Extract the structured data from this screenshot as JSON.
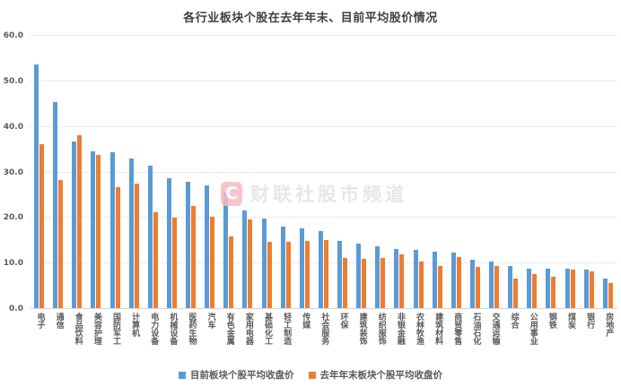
{
  "title": "各行业板块个股在去年年末、目前平均股价情况",
  "watermark": {
    "logo_letter": "C",
    "text": "财联社股市频道"
  },
  "legend": [
    {
      "label": "目前板块个股平均收盘价",
      "color": "#5B9BD5"
    },
    {
      "label": "去年年末板块个股平均收盘价",
      "color": "#ED7D31"
    }
  ],
  "colors": {
    "series_current": "#5B9BD5",
    "series_last_year": "#ED7D31",
    "gridline": "#ebebeb",
    "axis_text": "#595959",
    "title_text": "#3f3f3f",
    "watermark_logo": "#f6bcc3",
    "watermark_text": "#e7e7e9"
  },
  "chart_data": {
    "type": "bar",
    "title": "各行业板块个股在去年年末、目前平均股价情况",
    "categories": [
      "电子",
      "通信",
      "食品饮料",
      "美容护理",
      "国防军工",
      "计算机",
      "电力设备",
      "机械设备",
      "医药生物",
      "汽车",
      "有色金属",
      "家用电器",
      "基础化工",
      "轻工制造",
      "传媒",
      "社会服务",
      "环保",
      "建筑装饰",
      "纺织服饰",
      "非银金融",
      "农林牧渔",
      "建筑材料",
      "商贸零售",
      "石油石化",
      "交通运输",
      "综合",
      "公用事业",
      "钢铁",
      "煤炭",
      "银行",
      "房地产"
    ],
    "series": [
      {
        "name": "目前板块个股平均收盘价",
        "color": "#5B9BD5",
        "values": [
          53.6,
          45.3,
          36.5,
          34.5,
          34.3,
          32.8,
          31.2,
          28.5,
          27.7,
          27.0,
          25.3,
          21.5,
          19.6,
          18.0,
          17.5,
          17.0,
          14.7,
          14.1,
          13.5,
          12.9,
          12.7,
          12.3,
          12.2,
          10.7,
          10.2,
          9.2,
          8.6,
          8.7,
          8.6,
          8.5,
          6.4
        ]
      },
      {
        "name": "去年年末板块个股平均收盘价",
        "color": "#ED7D31",
        "values": [
          36.1,
          28.2,
          37.9,
          33.6,
          26.6,
          27.4,
          21.1,
          19.9,
          22.4,
          20.1,
          15.8,
          19.5,
          14.5,
          14.5,
          14.7,
          14.9,
          11.1,
          10.8,
          11.0,
          11.9,
          10.3,
          9.2,
          11.3,
          9.0,
          9.3,
          6.4,
          7.4,
          6.8,
          8.4,
          8.1,
          5.6
        ]
      }
    ],
    "xlabel": "",
    "ylabel": "",
    "ylim": [
      0,
      60
    ],
    "ytick_interval": 10,
    "ytick_labels": [
      "0.0",
      "10.0",
      "20.0",
      "30.0",
      "40.0",
      "50.0",
      "60.0"
    ],
    "grid": true,
    "legend_position": "bottom"
  }
}
